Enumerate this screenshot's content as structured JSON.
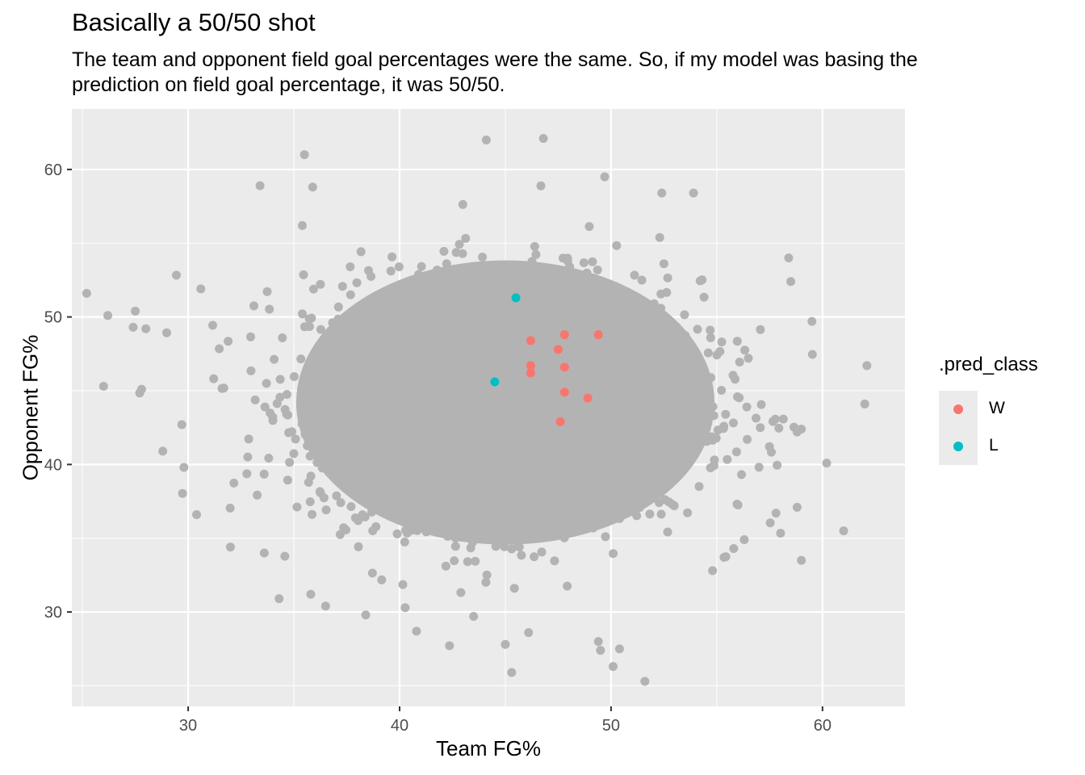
{
  "chart_data": {
    "type": "scatter",
    "title": "Basically a 50/50 shot",
    "subtitle": [
      "The team and opponent field goal percentages were the same. So, if my model was basing the",
      "prediction on field goal percentage, it was 50/50."
    ],
    "xlabel": "Team FG%",
    "ylabel": "Opponent FG%",
    "xlim": [
      24.5,
      63.9
    ],
    "ylim": [
      23.6,
      64.1
    ],
    "xticks": [
      30,
      40,
      50,
      60
    ],
    "yticks": [
      30,
      40,
      50,
      60
    ],
    "grid": true,
    "legend": {
      "title": ".pred_class",
      "placement": "right"
    },
    "background_cloud": {
      "description_color": "#b3b3b3",
      "center": [
        45.0,
        44.2
      ],
      "sd": [
        4.6,
        4.1
      ]
    },
    "outliers": [
      [
        25.2,
        51.6
      ],
      [
        26.2,
        50.1
      ],
      [
        26.0,
        45.3
      ],
      [
        27.5,
        50.4
      ],
      [
        27.4,
        49.3
      ],
      [
        28.0,
        49.2
      ],
      [
        27.8,
        45.1
      ],
      [
        28.8,
        40.9
      ],
      [
        29.7,
        42.7
      ],
      [
        29.8,
        39.8
      ],
      [
        30.4,
        36.6
      ],
      [
        30.6,
        51.9
      ],
      [
        32.0,
        34.4
      ],
      [
        33.4,
        58.9
      ],
      [
        35.5,
        61.0
      ],
      [
        35.4,
        56.2
      ],
      [
        33.6,
        34.0
      ],
      [
        34.3,
        30.9
      ],
      [
        36.5,
        30.4
      ],
      [
        35.8,
        31.2
      ],
      [
        38.4,
        29.8
      ],
      [
        40.8,
        28.7
      ],
      [
        43.5,
        29.7
      ],
      [
        45.0,
        27.8
      ],
      [
        45.3,
        25.9
      ],
      [
        46.1,
        28.6
      ],
      [
        44.1,
        62.0
      ],
      [
        46.8,
        62.1
      ],
      [
        49.4,
        28.0
      ],
      [
        49.5,
        27.4
      ],
      [
        50.1,
        26.3
      ],
      [
        50.4,
        27.5
      ],
      [
        51.6,
        25.3
      ],
      [
        49.7,
        59.5
      ],
      [
        52.4,
        58.4
      ],
      [
        53.9,
        58.4
      ],
      [
        58.4,
        54.0
      ],
      [
        58.5,
        52.4
      ],
      [
        59.5,
        49.7
      ],
      [
        58.8,
        42.2
      ],
      [
        59.0,
        42.4
      ],
      [
        58.8,
        37.1
      ],
      [
        59.0,
        33.5
      ],
      [
        61.0,
        35.5
      ],
      [
        62.1,
        46.7
      ],
      [
        62.0,
        44.1
      ],
      [
        57.8,
        36.7
      ],
      [
        56.3,
        34.9
      ],
      [
        55.8,
        34.3
      ],
      [
        54.8,
        32.8
      ]
    ],
    "series": [
      {
        "name": "W",
        "color": "#f8766d",
        "points": [
          [
            46.2,
            48.4
          ],
          [
            47.8,
            48.8
          ],
          [
            49.4,
            48.8
          ],
          [
            47.5,
            47.8
          ],
          [
            46.2,
            46.7
          ],
          [
            46.2,
            46.2
          ],
          [
            47.8,
            46.6
          ],
          [
            47.8,
            44.9
          ],
          [
            48.9,
            44.5
          ],
          [
            47.6,
            42.9
          ]
        ]
      },
      {
        "name": "L",
        "color": "#00bfc4",
        "points": [
          [
            45.5,
            51.3
          ],
          [
            44.5,
            45.6
          ]
        ]
      }
    ]
  }
}
